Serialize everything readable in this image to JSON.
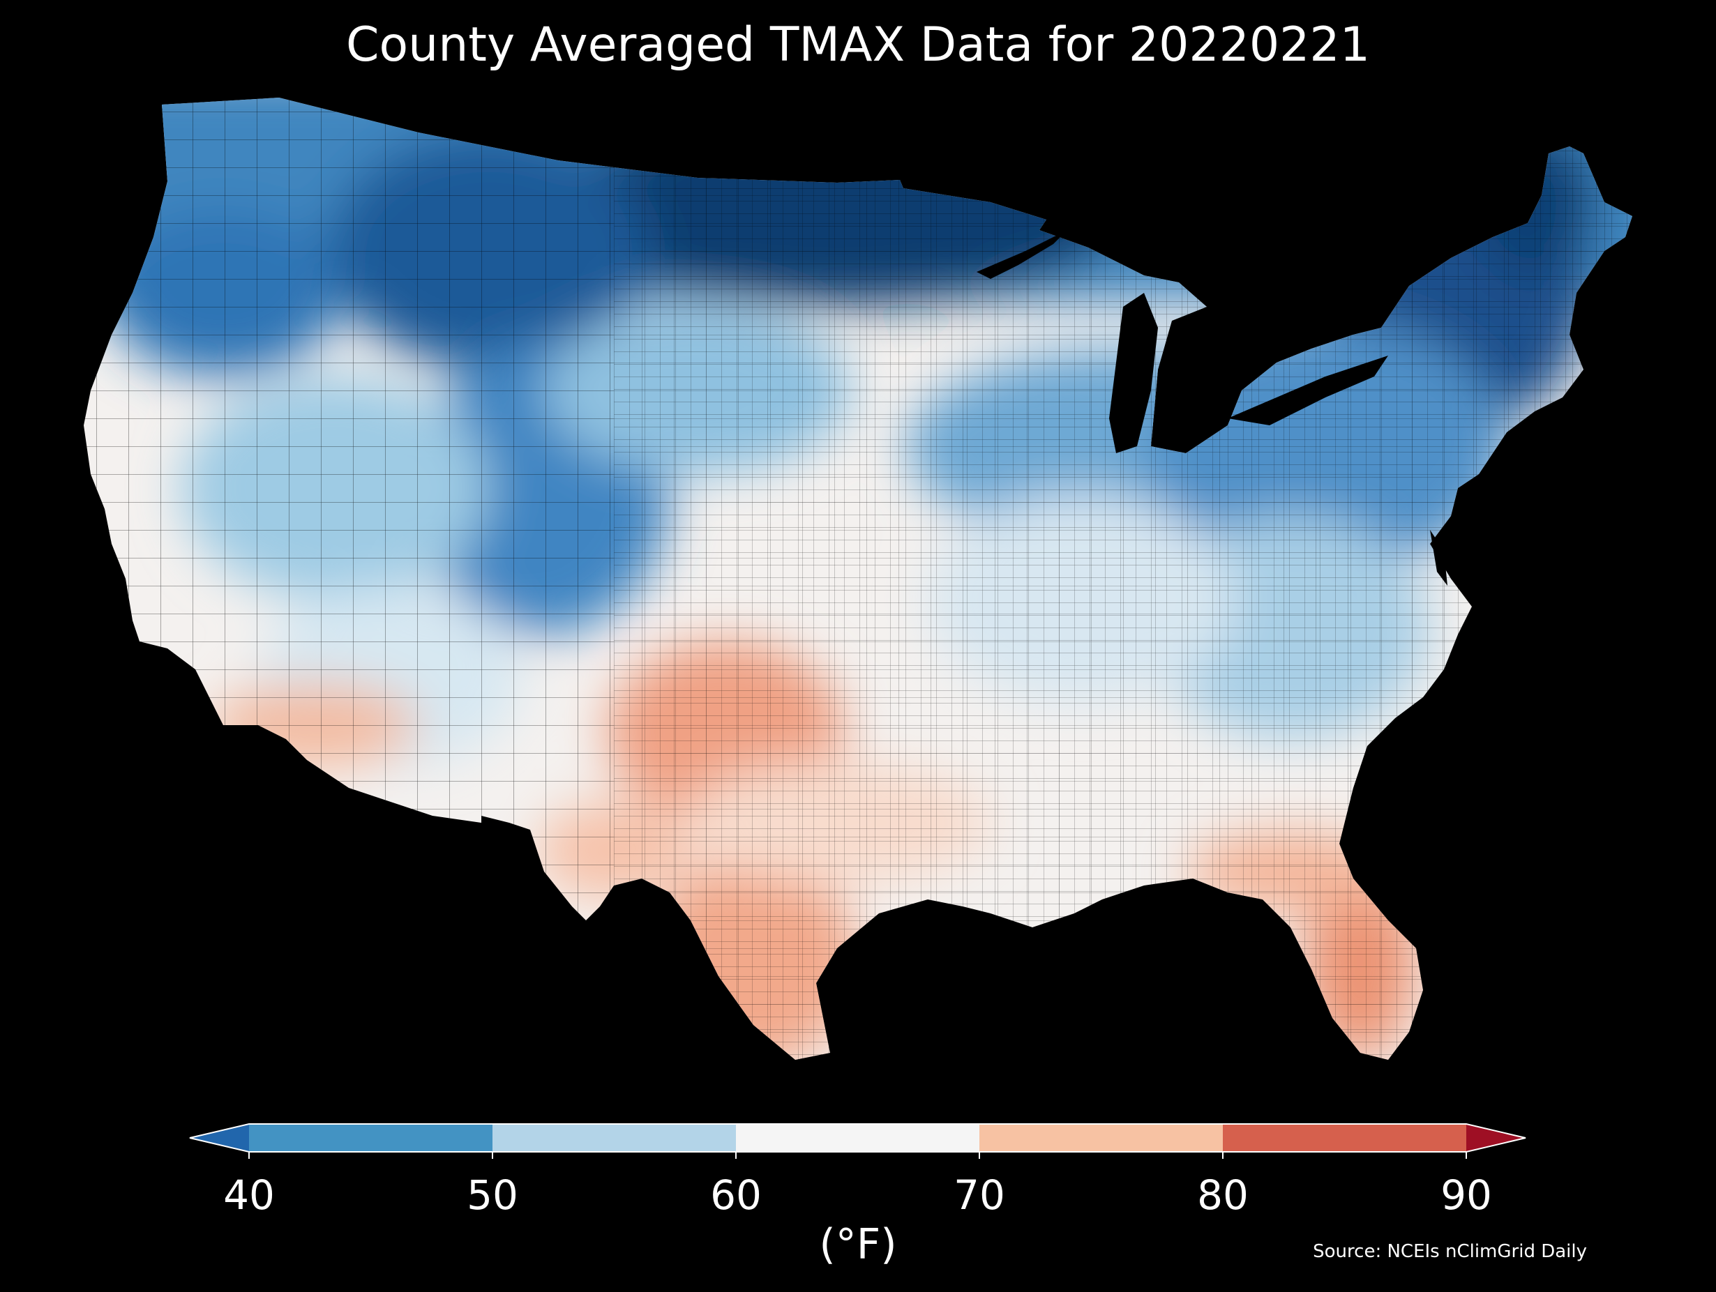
{
  "title": "County Averaged TMAX Data for 20220221",
  "colorbar": {
    "ticks": [
      "40",
      "50",
      "60",
      "70",
      "80",
      "90"
    ],
    "units": "(°F)",
    "bins": [
      {
        "range": "<40",
        "color": "#2166ac"
      },
      {
        "range": "40-50",
        "color": "#4393c3"
      },
      {
        "range": "50-60",
        "color": "#b3d4e8"
      },
      {
        "range": "60-70",
        "color": "#f5f5f5"
      },
      {
        "range": "70-80",
        "color": "#f7c2a3"
      },
      {
        "range": "80-90",
        "color": "#d6604d"
      },
      {
        "range": ">90",
        "color": "#9e0f24"
      }
    ],
    "extend": "both"
  },
  "source": "Source: NCEIs nClimGrid Daily",
  "map": {
    "region": "Contiguous United States",
    "variable": "TMAX",
    "date": "20220221",
    "background": "#000000",
    "pattern": "coldest across the northern tier and upper Midwest (dark blue); mild across the central plains and southeast (white to light orange); warmest in south Texas and Florida (orange)"
  }
}
